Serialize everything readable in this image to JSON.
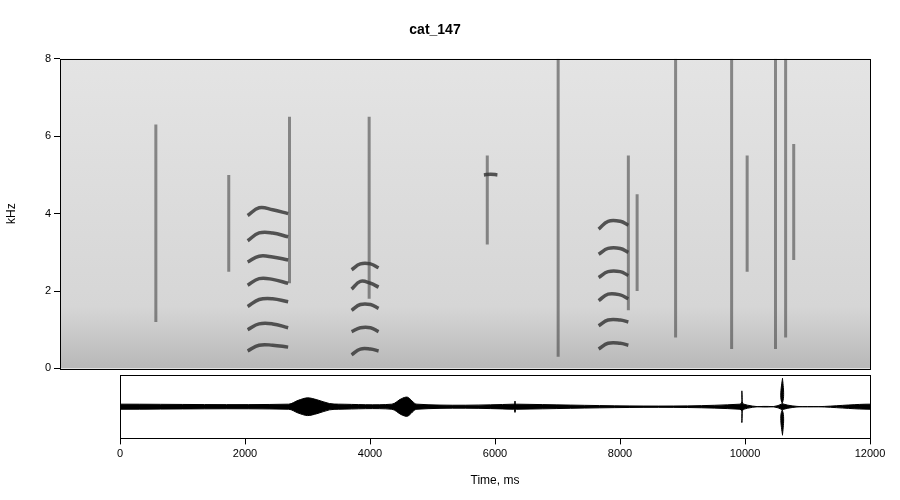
{
  "chart_data": [
    {
      "type": "spectrogram",
      "title": "cat_147",
      "y_label": "kHz",
      "xlim": [
        0,
        12000
      ],
      "ylim": [
        0,
        8
      ],
      "yticks": [
        0,
        2,
        4,
        6,
        8
      ],
      "tick_labels": "y",
      "grid": false,
      "color": "#3a3a3a",
      "streaks": [
        {
          "time": 1420,
          "freq": [
            1.2,
            6.3
          ]
        },
        {
          "time": 2500,
          "freq": [
            2.5,
            5.0
          ]
        },
        {
          "time": 3400,
          "freq": [
            2.2,
            6.5
          ]
        },
        {
          "time": 4580,
          "freq": [
            1.8,
            6.5
          ]
        },
        {
          "time": 6330,
          "freq": [
            3.2,
            5.5
          ]
        },
        {
          "time": 7380,
          "freq": [
            0.3,
            8
          ]
        },
        {
          "time": 8420,
          "freq": [
            1.5,
            5.5
          ]
        },
        {
          "time": 8550,
          "freq": [
            2.0,
            4.5
          ]
        },
        {
          "time": 9120,
          "freq": [
            0.8,
            8
          ]
        },
        {
          "time": 9950,
          "freq": [
            0.5,
            8
          ]
        },
        {
          "time": 10180,
          "freq": [
            2.5,
            5.5
          ]
        },
        {
          "time": 10600,
          "freq": [
            0.5,
            8
          ]
        },
        {
          "time": 10750,
          "freq": [
            0.8,
            8
          ]
        },
        {
          "time": 10870,
          "freq": [
            2.8,
            5.8
          ]
        }
      ],
      "harmonics": [
        {
          "time": [
            2780,
            2950,
            3150,
            3380
          ],
          "freq": [
            0.45,
            0.6,
            0.6,
            0.55
          ]
        },
        {
          "time": [
            2780,
            2950,
            3150,
            3380
          ],
          "freq": [
            1.0,
            1.15,
            1.15,
            1.05
          ]
        },
        {
          "time": [
            2780,
            2950,
            3150,
            3380
          ],
          "freq": [
            1.6,
            1.78,
            1.8,
            1.72
          ]
        },
        {
          "time": [
            2780,
            2950,
            3150,
            3380
          ],
          "freq": [
            2.15,
            2.32,
            2.3,
            2.2
          ]
        },
        {
          "time": [
            2780,
            2950,
            3150,
            3380
          ],
          "freq": [
            2.75,
            2.9,
            2.88,
            2.8
          ]
        },
        {
          "time": [
            2780,
            2950,
            3150,
            3380
          ],
          "freq": [
            3.3,
            3.5,
            3.5,
            3.4
          ]
        },
        {
          "time": [
            2780,
            2950,
            3150,
            3380
          ],
          "freq": [
            3.95,
            4.15,
            4.1,
            4.0
          ]
        },
        {
          "time": [
            4320,
            4450,
            4600,
            4720
          ],
          "freq": [
            0.35,
            0.5,
            0.5,
            0.45
          ]
        },
        {
          "time": [
            4320,
            4450,
            4600,
            4720
          ],
          "freq": [
            0.95,
            1.05,
            1.05,
            0.95
          ]
        },
        {
          "time": [
            4320,
            4450,
            4600,
            4720
          ],
          "freq": [
            1.5,
            1.65,
            1.65,
            1.55
          ]
        },
        {
          "time": [
            4320,
            4450,
            4600,
            4720
          ],
          "freq": [
            2.05,
            2.25,
            2.2,
            2.1
          ]
        },
        {
          "time": [
            4320,
            4450,
            4600,
            4720
          ],
          "freq": [
            2.55,
            2.7,
            2.7,
            2.6
          ]
        },
        {
          "time": [
            6280,
            6380,
            6480
          ],
          "freq": [
            5.0,
            5.02,
            5.0
          ]
        },
        {
          "time": [
            7980,
            8120,
            8300,
            8420
          ],
          "freq": [
            0.5,
            0.65,
            0.65,
            0.6
          ]
        },
        {
          "time": [
            7980,
            8120,
            8300,
            8420
          ],
          "freq": [
            1.1,
            1.25,
            1.25,
            1.2
          ]
        },
        {
          "time": [
            7980,
            8120,
            8300,
            8420
          ],
          "freq": [
            1.75,
            1.92,
            1.9,
            1.8
          ]
        },
        {
          "time": [
            7980,
            8120,
            8300,
            8420
          ],
          "freq": [
            2.35,
            2.5,
            2.5,
            2.4
          ]
        },
        {
          "time": [
            7980,
            8120,
            8300,
            8420
          ],
          "freq": [
            2.95,
            3.1,
            3.1,
            3.0
          ]
        },
        {
          "time": [
            7980,
            8120,
            8300,
            8420
          ],
          "freq": [
            3.6,
            3.8,
            3.8,
            3.7
          ]
        }
      ]
    },
    {
      "type": "waveform",
      "x_label": "Time, ms",
      "xlim": [
        0,
        12000
      ],
      "xticks": [
        0,
        2000,
        4000,
        6000,
        8000,
        10000,
        12000
      ],
      "ylim": [
        -1,
        1
      ],
      "tick_labels": "x",
      "grid": false,
      "color": "#000000",
      "x": [
        0,
        2700,
        2850,
        3000,
        3150,
        3350,
        3500,
        4350,
        4500,
        4600,
        4750,
        6300,
        6320,
        6340,
        9920,
        9950,
        9980,
        10580,
        10600,
        10620,
        12000
      ],
      "upper": [
        0.08,
        0.08,
        0.2,
        0.28,
        0.22,
        0.1,
        0.08,
        0.08,
        0.25,
        0.3,
        0.08,
        0.08,
        0.18,
        0.08,
        0.08,
        0.5,
        0.08,
        0.08,
        0.9,
        0.08,
        0.08
      ],
      "lower": [
        -0.08,
        -0.08,
        -0.2,
        -0.28,
        -0.22,
        -0.1,
        -0.08,
        -0.08,
        -0.25,
        -0.3,
        -0.08,
        -0.08,
        -0.18,
        -0.08,
        -0.08,
        -0.5,
        -0.08,
        -0.08,
        -0.9,
        -0.08,
        -0.08
      ]
    }
  ]
}
